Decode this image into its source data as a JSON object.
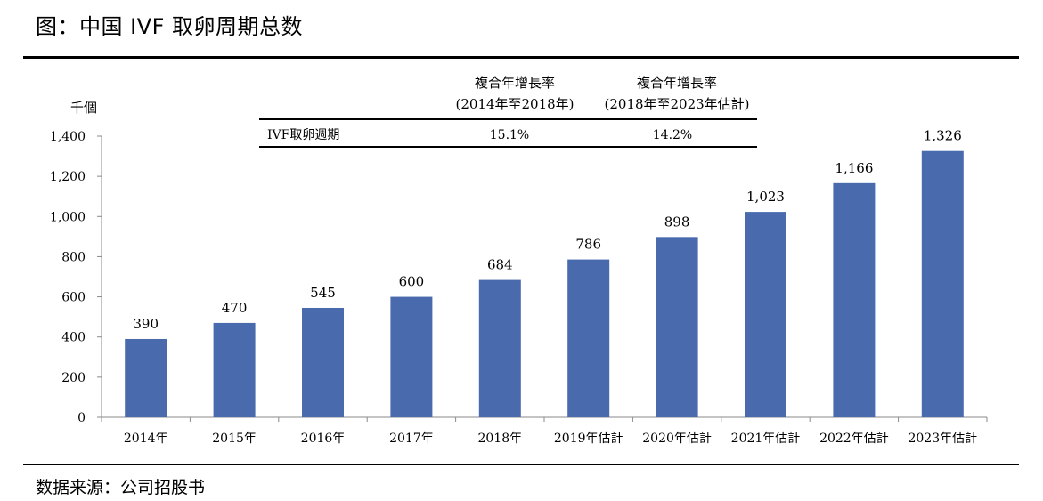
{
  "figure_title": "图：中国 IVF 取卵周期总数",
  "source": "数据来源：公司招股书",
  "chart_data": {
    "type": "bar",
    "unit_label": "千個",
    "categories": [
      "2014年",
      "2015年",
      "2016年",
      "2017年",
      "2018年",
      "2019年估計",
      "2020年估計",
      "2021年估計",
      "2022年估計",
      "2023年估計"
    ],
    "values": [
      390,
      470,
      545,
      600,
      684,
      786,
      898,
      1023,
      1166,
      1326
    ],
    "value_labels": [
      "390",
      "470",
      "545",
      "600",
      "684",
      "786",
      "898",
      "1,023",
      "1,166",
      "1,326"
    ],
    "ylim": [
      0,
      1400
    ],
    "yticks": [
      0,
      200,
      400,
      600,
      800,
      1000,
      1200,
      1400
    ],
    "ytick_labels": [
      "0",
      "200",
      "400",
      "600",
      "800",
      "1,000",
      "1,200",
      "1,400"
    ],
    "bar_color": "#4a6aae",
    "grid": false
  },
  "cagr_table": {
    "col1_head1": "複合年增長率",
    "col1_head2": "(2014年至2018年)",
    "col2_head1": "複合年增長率",
    "col2_head2": "(2018年至2023年估計)",
    "row_label": "IVF取卵週期",
    "col1_value": "15.1%",
    "col2_value": "14.2%"
  }
}
